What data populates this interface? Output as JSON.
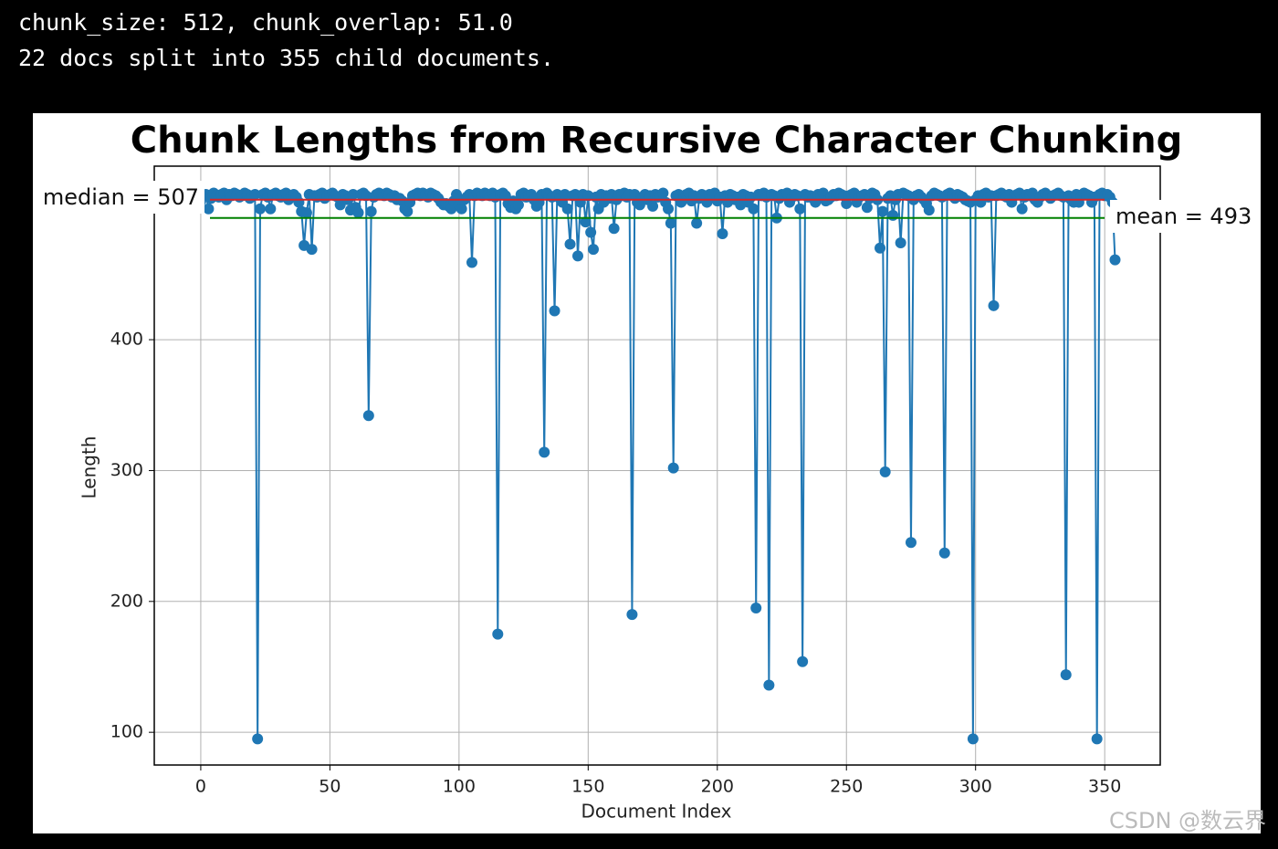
{
  "output": {
    "lines": [
      "chunk_size: 512, chunk_overlap: 51.0",
      "22 docs split into 355 child documents."
    ]
  },
  "chart_data": {
    "type": "line",
    "title": "Chunk Lengths from Recursive Character Chunking",
    "x_label": "Document Index",
    "y_label": "Length",
    "xlim": [
      -18,
      371.5
    ],
    "xticks": [
      0,
      50,
      100,
      150,
      200,
      250,
      300,
      350
    ],
    "ylim": [
      75,
      532.6
    ],
    "yticks": [
      100,
      200,
      300,
      400
    ],
    "grid": true,
    "median": {
      "value": 507,
      "label": "median = 507",
      "color": "#d62728"
    },
    "mean": {
      "value": 493,
      "label": "mean = 493",
      "color": "#008000"
    },
    "series": [
      {
        "name": "Length",
        "color": "#1f77b4",
        "values": [
          506,
          510,
          511,
          500,
          508,
          512,
          510,
          509,
          511,
          512,
          507,
          511,
          510,
          512,
          511,
          509,
          510,
          512,
          511,
          508,
          510,
          511,
          95,
          500,
          511,
          512,
          509,
          500,
          511,
          512,
          510,
          509,
          511,
          512,
          507,
          510,
          511,
          509,
          505,
          498,
          472,
          497,
          511,
          469,
          510,
          509,
          511,
          512,
          508,
          510,
          511,
          512,
          510,
          509,
          503,
          511,
          510,
          507,
          499,
          511,
          501,
          497,
          511,
          512,
          510,
          342,
          498,
          509,
          511,
          512,
          511,
          510,
          512,
          511,
          509,
          510,
          507,
          508,
          506,
          500,
          498,
          505,
          510,
          511,
          512,
          510,
          512,
          511,
          509,
          512,
          511,
          510,
          508,
          505,
          503,
          504,
          502,
          500,
          506,
          511,
          503,
          500,
          507,
          509,
          511,
          459,
          510,
          512,
          511,
          510,
          512,
          511,
          510,
          512,
          509,
          175,
          511,
          512,
          510,
          504,
          501,
          506,
          500,
          503,
          511,
          512,
          509,
          510,
          511,
          507,
          502,
          505,
          511,
          314,
          512,
          510,
          509,
          422,
          511,
          508,
          505,
          511,
          500,
          473,
          510,
          511,
          464,
          505,
          511,
          490,
          510,
          482,
          469,
          509,
          500,
          511,
          505,
          510,
          508,
          511,
          485,
          507,
          511,
          510,
          512,
          509,
          511,
          190,
          511,
          505,
          503,
          509,
          511,
          507,
          510,
          502,
          511,
          509,
          510,
          512,
          505,
          500,
          489,
          302,
          510,
          511,
          505,
          509,
          511,
          512,
          506,
          510,
          489,
          508,
          511,
          510,
          505,
          511,
          510,
          512,
          506,
          509,
          481,
          510,
          505,
          511,
          510,
          507,
          509,
          503,
          511,
          510,
          505,
          509,
          500,
          195,
          511,
          510,
          512,
          509,
          136,
          511,
          510,
          493,
          508,
          511,
          510,
          512,
          505,
          509,
          511,
          510,
          500,
          154,
          511,
          509,
          510,
          508,
          505,
          511,
          510,
          512,
          506,
          507,
          509,
          511,
          510,
          512,
          511,
          510,
          504,
          510,
          511,
          512,
          505,
          509,
          510,
          511,
          501,
          508,
          512,
          511,
          507,
          470,
          498,
          299,
          508,
          510,
          495,
          507,
          511,
          474,
          512,
          511,
          510,
          245,
          507,
          510,
          511,
          509,
          507,
          504,
          499,
          510,
          512,
          511,
          510,
          509,
          237,
          511,
          512,
          510,
          508,
          511,
          510,
          509,
          507,
          506,
          505,
          95,
          507,
          510,
          505,
          511,
          512,
          509,
          510,
          426,
          510,
          511,
          512,
          510,
          509,
          511,
          505,
          510,
          511,
          512,
          500,
          509,
          511,
          510,
          512,
          507,
          505,
          509,
          511,
          512,
          510,
          508,
          510,
          511,
          512,
          510,
          509,
          144,
          510,
          507,
          505,
          511,
          505,
          510,
          512,
          511,
          510,
          505,
          509,
          95,
          511,
          512,
          510,
          511,
          509,
          505,
          461
        ]
      }
    ]
  },
  "watermark": "CSDN @数云界"
}
